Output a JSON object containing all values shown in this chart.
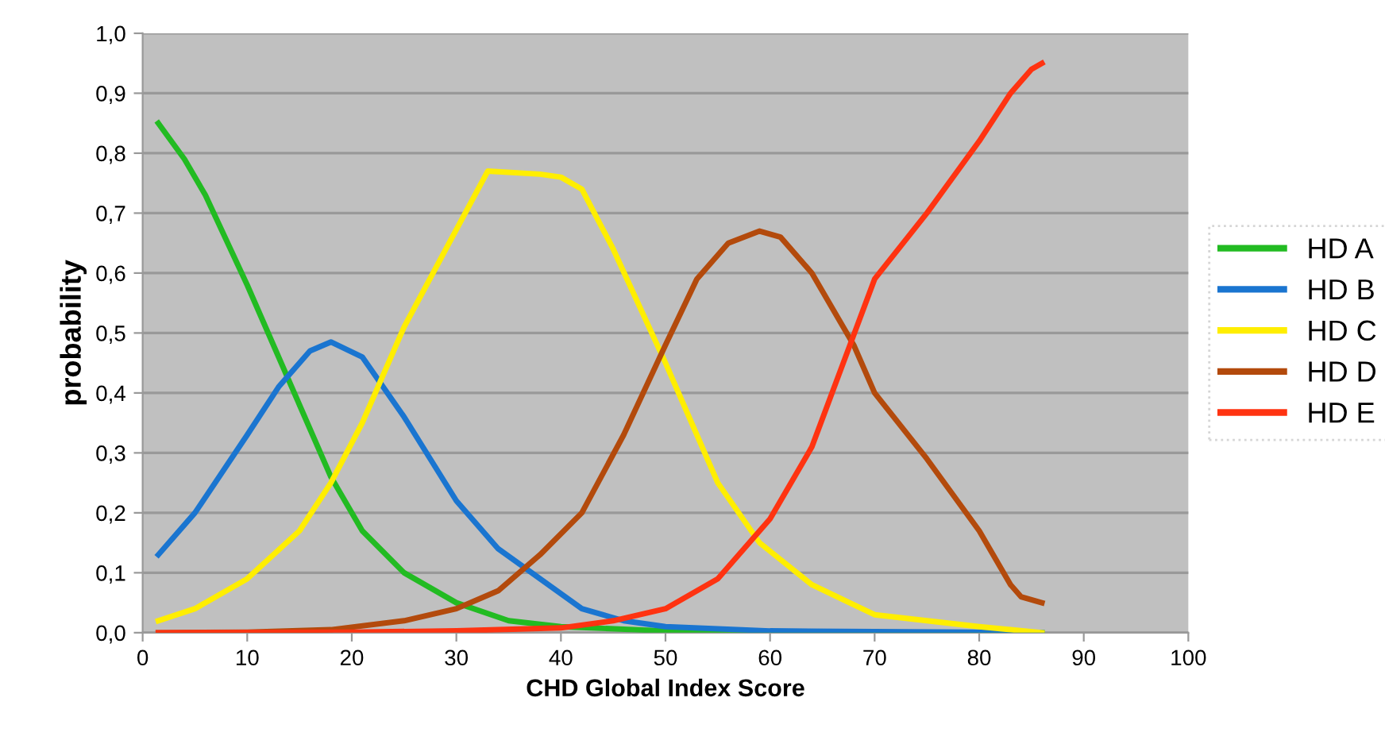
{
  "chart_data": {
    "type": "line",
    "xlabel": "CHD Global Index Score",
    "ylabel": "probability",
    "xlim": [
      0,
      100
    ],
    "xticks": [
      0,
      10,
      20,
      30,
      40,
      50,
      60,
      70,
      80,
      90,
      100
    ],
    "ylim": [
      0,
      1
    ],
    "yticks": [
      {
        "value": 0,
        "label": "0,0"
      },
      {
        "value": 0.1,
        "label": "0,1"
      },
      {
        "value": 0.2,
        "label": "0,2"
      },
      {
        "value": 0.3,
        "label": "0,3"
      },
      {
        "value": 0.4,
        "label": "0,4"
      },
      {
        "value": 0.5,
        "label": "0,5"
      },
      {
        "value": 0.6,
        "label": "0,6"
      },
      {
        "value": 0.7,
        "label": "0,7"
      },
      {
        "value": 0.8,
        "label": "0,8"
      },
      {
        "value": 0.9,
        "label": "0,9"
      },
      {
        "value": 1,
        "label": "1,0"
      }
    ],
    "grid": "y",
    "legend": "right",
    "marker": "none",
    "line_style": "solid",
    "series": [
      {
        "name": "HD A",
        "color": "#22bb22",
        "x": [
          1.5,
          4,
          6,
          10,
          15,
          18,
          21,
          25,
          30,
          35,
          40,
          50,
          60,
          86
        ],
        "values": [
          0.85,
          0.79,
          0.73,
          0.58,
          0.38,
          0.26,
          0.17,
          0.1,
          0.05,
          0.02,
          0.01,
          0.003,
          0,
          0
        ]
      },
      {
        "name": "HD B",
        "color": "#1a75d0",
        "x": [
          1.5,
          5,
          10,
          13,
          16,
          18,
          21,
          25,
          30,
          34,
          38,
          42,
          46,
          50,
          60,
          86
        ],
        "values": [
          0.13,
          0.2,
          0.33,
          0.41,
          0.47,
          0.485,
          0.46,
          0.36,
          0.22,
          0.14,
          0.09,
          0.04,
          0.02,
          0.01,
          0.003,
          0
        ]
      },
      {
        "name": "HD C",
        "color": "#ffee00",
        "x": [
          1.5,
          5,
          10,
          15,
          18,
          21,
          25,
          29,
          33,
          38,
          40,
          42,
          45,
          50,
          55,
          59,
          64,
          70,
          75,
          80,
          86
        ],
        "values": [
          0.02,
          0.04,
          0.09,
          0.17,
          0.25,
          0.35,
          0.51,
          0.64,
          0.77,
          0.765,
          0.76,
          0.74,
          0.64,
          0.45,
          0.25,
          0.15,
          0.08,
          0.03,
          0.02,
          0.01,
          0
        ]
      },
      {
        "name": "HD D",
        "color": "#b34a0c",
        "x": [
          1.5,
          10,
          18,
          25,
          30,
          34,
          38,
          42,
          46,
          50,
          53,
          56,
          59,
          61,
          64,
          68,
          70,
          75,
          80,
          83,
          84,
          86
        ],
        "values": [
          0,
          0.001,
          0.005,
          0.02,
          0.04,
          0.07,
          0.13,
          0.2,
          0.33,
          0.48,
          0.59,
          0.65,
          0.67,
          0.66,
          0.6,
          0.48,
          0.4,
          0.29,
          0.17,
          0.08,
          0.06,
          0.05
        ]
      },
      {
        "name": "HD E",
        "color": "#ff3311",
        "x": [
          1.5,
          20,
          30,
          40,
          45,
          50,
          55,
          60,
          64,
          67,
          70,
          75,
          80,
          83,
          85,
          86
        ],
        "values": [
          0,
          0.001,
          0.003,
          0.008,
          0.02,
          0.04,
          0.09,
          0.19,
          0.31,
          0.45,
          0.59,
          0.7,
          0.82,
          0.9,
          0.94,
          0.95
        ]
      }
    ]
  }
}
